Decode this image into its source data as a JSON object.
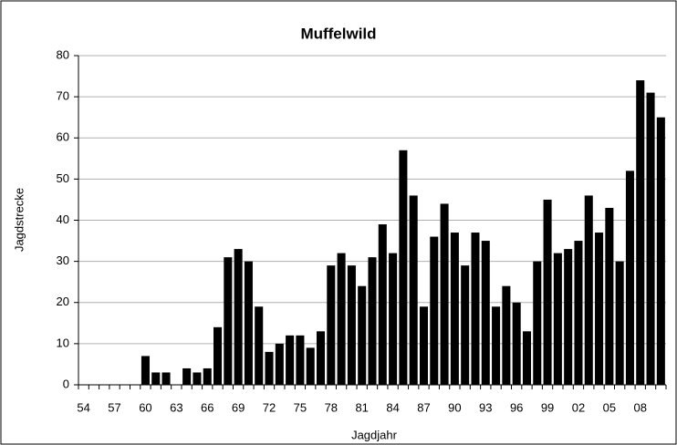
{
  "chart_data": {
    "type": "bar",
    "title": "Muffelwild",
    "x_label": "Jagdjahr",
    "y_label": "Jagdstrecke",
    "categories": [
      "54",
      null,
      null,
      "57",
      null,
      null,
      "60",
      null,
      null,
      "63",
      null,
      null,
      "66",
      null,
      null,
      "69",
      null,
      null,
      "72",
      null,
      null,
      "75",
      null,
      null,
      "78",
      null,
      null,
      "81",
      null,
      null,
      "84",
      null,
      null,
      "87",
      null,
      null,
      "90",
      null,
      null,
      "93",
      null,
      null,
      "96",
      null,
      null,
      "99",
      null,
      null,
      "02",
      null,
      null,
      "05",
      null,
      null,
      "08",
      null,
      null
    ],
    "values": [
      0,
      0,
      0,
      0,
      0,
      0,
      7,
      3,
      3,
      0,
      4,
      3,
      4,
      14,
      31,
      33,
      30,
      19,
      8,
      10,
      12,
      12,
      9,
      13,
      29,
      32,
      29,
      24,
      31,
      39,
      32,
      57,
      46,
      19,
      36,
      44,
      37,
      29,
      37,
      35,
      19,
      24,
      20,
      13,
      30,
      45,
      32,
      33,
      35,
      46,
      37,
      43,
      30,
      52,
      74,
      71,
      65
    ],
    "color": "#000000",
    "ylim": [
      0,
      80
    ],
    "yticks": [
      0,
      10,
      20,
      30,
      40,
      50,
      60,
      70,
      80
    ],
    "grid": true
  }
}
